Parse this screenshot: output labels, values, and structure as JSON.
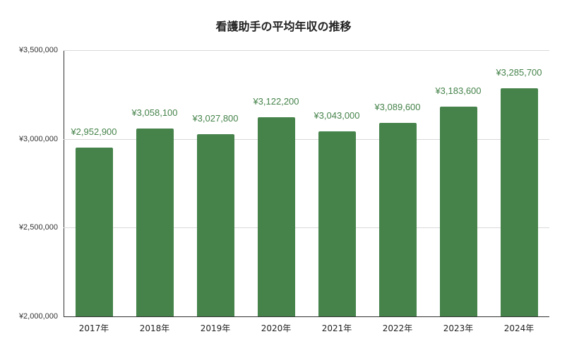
{
  "chart_data": {
    "type": "bar",
    "title": "看護助手の平均年収の推移",
    "xlabel": "",
    "ylabel": "",
    "categories": [
      "2017年",
      "2018年",
      "2019年",
      "2020年",
      "2021年",
      "2022年",
      "2023年",
      "2024年"
    ],
    "values": [
      2952900,
      3058100,
      3027800,
      3122200,
      3043000,
      3089600,
      3183600,
      3285700
    ],
    "data_labels": [
      "¥2,952,900",
      "¥3,058,100",
      "¥3,027,800",
      "¥3,122,200",
      "¥3,043,000",
      "¥3,089,600",
      "¥3,183,600",
      "¥3,285,700"
    ],
    "ylim": [
      2000000,
      3500000
    ],
    "yticks": [
      2000000,
      2500000,
      3000000,
      3500000
    ],
    "ytick_labels": [
      "¥2,000,000",
      "¥2,500,000",
      "¥3,000,000",
      "¥3,500,000"
    ],
    "grid": true,
    "legend": "none",
    "colors": {
      "bar": "#45834a",
      "label": "#45834a",
      "grid": "#d9d9d9",
      "axis": "#333333"
    }
  }
}
